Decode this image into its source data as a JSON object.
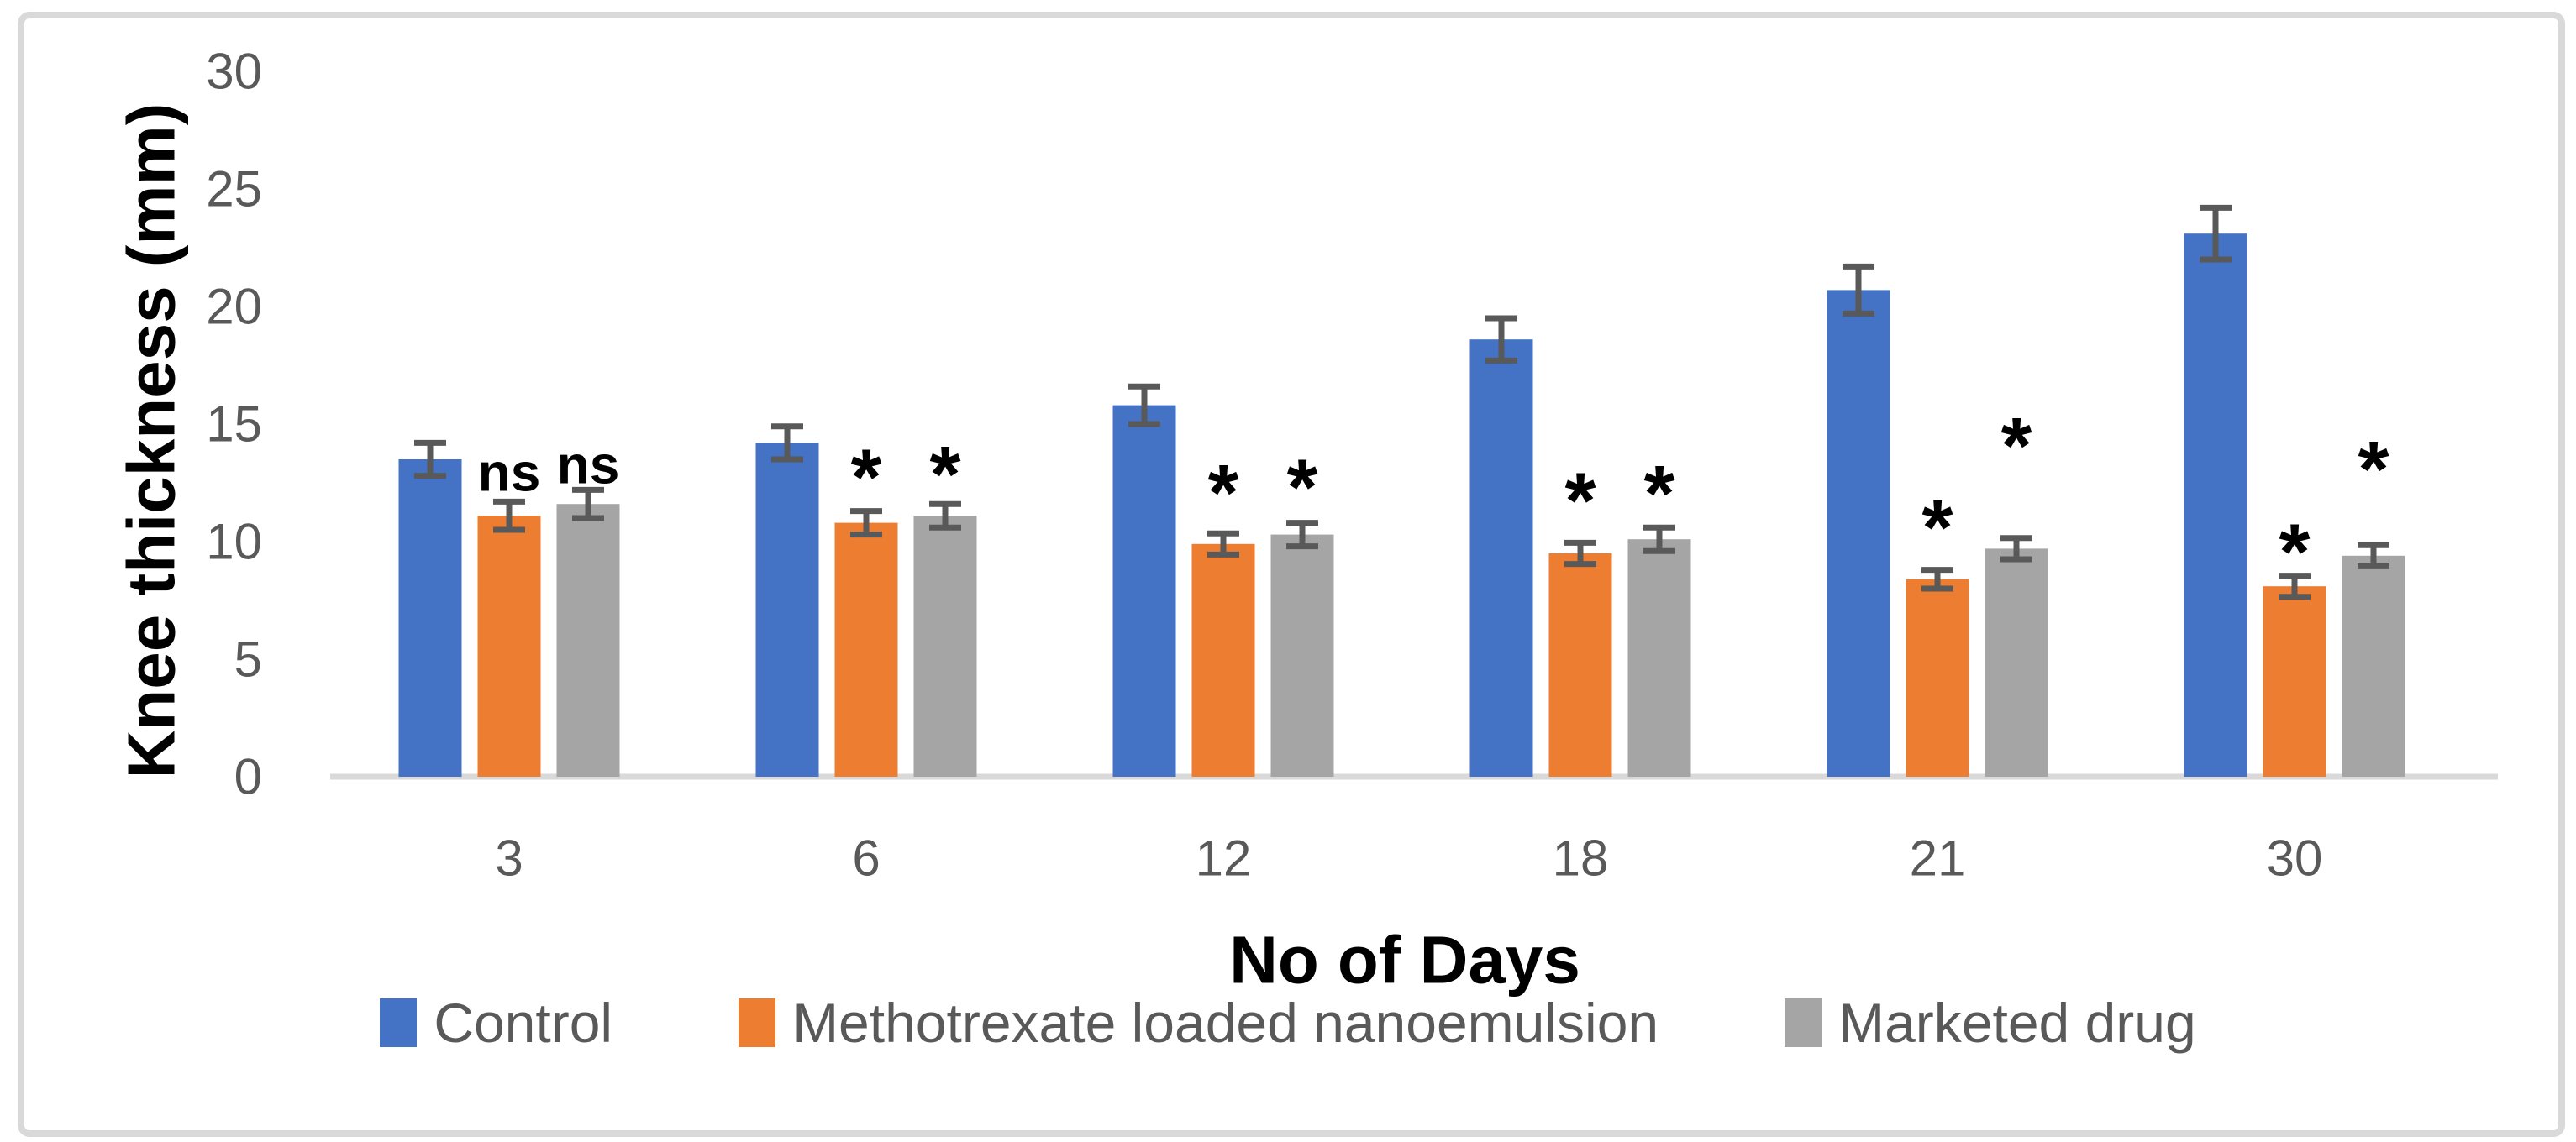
{
  "figure": {
    "background_color": "#ffffff",
    "border_color": "#d9d9d9"
  },
  "chart_data": {
    "type": "bar",
    "title": "",
    "xlabel": "No of Days",
    "ylabel": "Knee thickness (mm)",
    "categories": [
      "3",
      "6",
      "12",
      "18",
      "21",
      "30"
    ],
    "y_ticks": [
      0,
      5,
      10,
      15,
      20,
      25,
      30
    ],
    "ylim": [
      0,
      30
    ],
    "grid": false,
    "legend_position": "bottom",
    "axis_line_color": "#d9d9d9",
    "tick_label_color": "#595959",
    "error_bar_color": "#595959",
    "series": [
      {
        "name": "Control",
        "color": "#4472c4",
        "values": [
          13.5,
          14.2,
          15.8,
          18.6,
          20.7,
          23.1
        ],
        "errors": [
          0.7,
          0.7,
          0.8,
          0.9,
          1.0,
          1.1
        ]
      },
      {
        "name": "Methotrexate loaded nanoemulsion",
        "color": "#ed7d31",
        "values": [
          11.1,
          10.8,
          9.9,
          9.5,
          8.4,
          8.1
        ],
        "errors": [
          0.6,
          0.5,
          0.45,
          0.45,
          0.4,
          0.45
        ]
      },
      {
        "name": "Marketed drug",
        "color": "#a5a5a5",
        "values": [
          11.6,
          11.1,
          10.3,
          10.1,
          9.7,
          9.4
        ],
        "errors": [
          0.6,
          0.5,
          0.5,
          0.5,
          0.45,
          0.45
        ]
      }
    ],
    "annotations": [
      {
        "group_index": 0,
        "series_index": 1,
        "text": "ns",
        "rise": 35
      },
      {
        "group_index": 0,
        "series_index": 2,
        "text": "ns",
        "rise": 30
      },
      {
        "group_index": 1,
        "series_index": 1,
        "text": "*",
        "rise": 40
      },
      {
        "group_index": 1,
        "series_index": 2,
        "text": "*",
        "rise": 35
      },
      {
        "group_index": 2,
        "series_index": 1,
        "text": "*",
        "rise": 48
      },
      {
        "group_index": 2,
        "series_index": 2,
        "text": "*",
        "rise": 42
      },
      {
        "group_index": 3,
        "series_index": 1,
        "text": "*",
        "rise": 50
      },
      {
        "group_index": 3,
        "series_index": 2,
        "text": "*",
        "rise": 40
      },
      {
        "group_index": 4,
        "series_index": 1,
        "text": "*",
        "rise": 50
      },
      {
        "group_index": 4,
        "series_index": 2,
        "text": "*",
        "rise": 110
      },
      {
        "group_index": 5,
        "series_index": 1,
        "text": "*",
        "rise": 28
      },
      {
        "group_index": 5,
        "series_index": 2,
        "text": "*",
        "rise": 90
      }
    ]
  }
}
